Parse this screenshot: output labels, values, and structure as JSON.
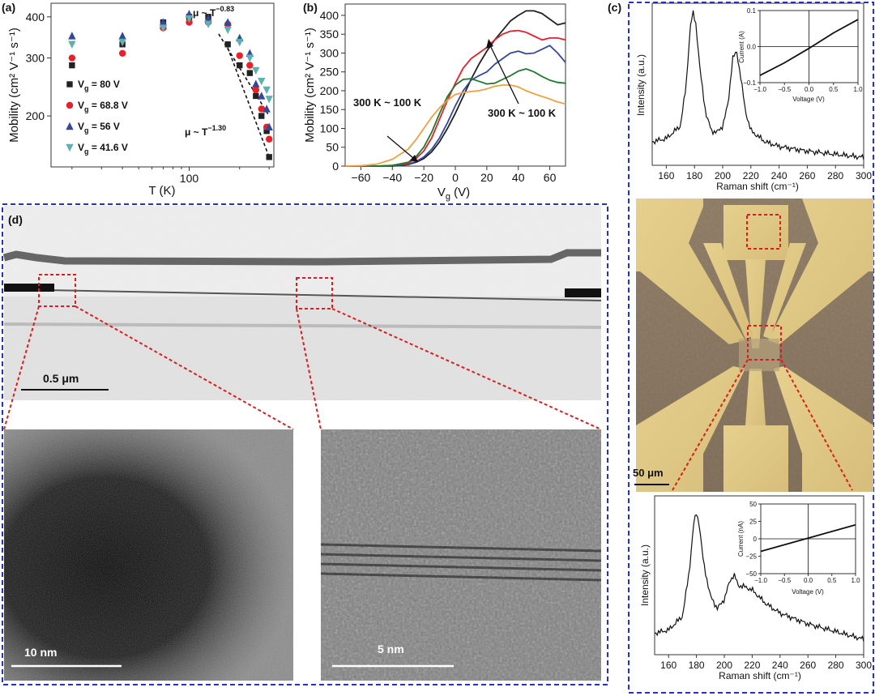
{
  "panel_letters": {
    "a": "(a)",
    "b": "(b)",
    "c": "(c)",
    "d": "(d)"
  },
  "colors": {
    "black": "#222222",
    "red": "#e8202a",
    "blue": "#34489a",
    "teal": "#5fb0b0",
    "green": "#1e7a2e",
    "orange": "#f0a040",
    "frame_blue": "#2233cc",
    "zoom_red": "#d42020"
  },
  "chart_data": [
    {
      "id": "a",
      "type": "scatter",
      "xlabel": "T (K)",
      "ylabel": "Mobility (cm² V⁻¹ s⁻¹)",
      "xscale": "log",
      "yscale": "log",
      "xlim": [
        15,
        320
      ],
      "ylim": [
        140,
        440
      ],
      "xticks": [
        100
      ],
      "yticks": [
        200,
        300,
        400
      ],
      "grid": false,
      "legend_position": "left",
      "annotations": [
        {
          "base": "μ ~ T",
          "exp": "−0.83"
        },
        {
          "base": "μ ~ T",
          "exp": "−1.30"
        }
      ],
      "fit_lines": [
        {
          "x": [
            150,
            300
          ],
          "y": [
            355,
            200
          ]
        },
        {
          "x": [
            165,
            300
          ],
          "y": [
            335,
            150
          ]
        }
      ],
      "x": [
        20,
        40,
        70,
        100,
        130,
        170,
        200,
        230,
        250,
        270,
        290,
        300
      ],
      "series": [
        {
          "name": "V",
          "sub": "g",
          "value": " = 80 V",
          "marker": "square",
          "color": "#222222",
          "values": [
            285,
            330,
            385,
            400,
            400,
            330,
            285,
            270,
            230,
            200,
            180,
            150
          ]
        },
        {
          "name": "V",
          "sub": "g",
          "value": " = 68.8 V",
          "marker": "circle",
          "color": "#e8202a",
          "values": [
            300,
            310,
            370,
            385,
            385,
            380,
            305,
            285,
            240,
            210,
            185,
            170
          ]
        },
        {
          "name": "V",
          "sub": "g",
          "value": " = 56 V",
          "marker": "triangle-up",
          "color": "#34489a",
          "values": [
            350,
            350,
            385,
            408,
            395,
            385,
            345,
            310,
            250,
            230,
            210,
            185
          ]
        },
        {
          "name": "V",
          "sub": "g",
          "value": " = 41.6 V",
          "marker": "triangle-down",
          "color": "#5fb0b0",
          "values": [
            330,
            335,
            370,
            395,
            380,
            365,
            335,
            300,
            275,
            255,
            240,
            225
          ]
        }
      ]
    },
    {
      "id": "b",
      "type": "line",
      "xlabel": "V",
      "xlabel_sub": "g",
      "xlabel_suffix": " (V)",
      "ylabel": "Mobility (cm² V⁻¹ s⁻¹)",
      "xlim": [
        -70,
        70
      ],
      "ylim": [
        0,
        430
      ],
      "xticks": [
        -60,
        -40,
        -20,
        0,
        20,
        40,
        60
      ],
      "yticks": [
        0,
        50,
        100,
        150,
        200,
        250,
        300,
        350,
        400
      ],
      "grid": false,
      "annotations": [
        "300 K ~ 100 K",
        "300 K ~ 100 K"
      ],
      "x": [
        -70,
        -60,
        -50,
        -40,
        -30,
        -25,
        -20,
        -15,
        -10,
        -5,
        0,
        5,
        10,
        15,
        20,
        25,
        30,
        35,
        40,
        45,
        50,
        55,
        60,
        65,
        70
      ],
      "series": [
        {
          "color": "#222222",
          "values": [
            0,
            0,
            0,
            0,
            4,
            10,
            20,
            38,
            65,
            100,
            140,
            185,
            230,
            270,
            305,
            335,
            360,
            385,
            400,
            412,
            412,
            405,
            390,
            375,
            380
          ]
        },
        {
          "color": "#34489a",
          "values": [
            0,
            0,
            0,
            1,
            5,
            12,
            24,
            45,
            75,
            115,
            160,
            200,
            228,
            240,
            250,
            270,
            285,
            300,
            305,
            298,
            300,
            310,
            320,
            300,
            275
          ]
        },
        {
          "color": "#e8202a",
          "values": [
            0,
            0,
            0,
            2,
            8,
            20,
            40,
            75,
            125,
            175,
            220,
            260,
            285,
            300,
            315,
            335,
            350,
            358,
            360,
            355,
            345,
            335,
            340,
            340,
            335
          ]
        },
        {
          "color": "#1e7a2e",
          "values": [
            0,
            0,
            0,
            2,
            10,
            25,
            50,
            90,
            140,
            185,
            215,
            230,
            232,
            225,
            218,
            220,
            230,
            240,
            252,
            258,
            250,
            238,
            228,
            222,
            220
          ]
        },
        {
          "color": "#f0a040",
          "values": [
            0,
            1,
            5,
            18,
            45,
            70,
            100,
            130,
            155,
            175,
            190,
            195,
            198,
            200,
            205,
            212,
            215,
            215,
            210,
            200,
            192,
            185,
            178,
            170,
            165
          ]
        }
      ]
    },
    {
      "id": "c-top",
      "type": "line",
      "xlabel": "Raman shift (cm⁻¹)",
      "ylabel": "Intensity (a.u.)",
      "xlim": [
        150,
        300
      ],
      "xticks": [
        160,
        180,
        200,
        220,
        240,
        260,
        280,
        300
      ],
      "grid": false,
      "x": [
        150,
        160,
        170,
        174,
        177,
        179,
        181,
        184,
        188,
        192,
        196,
        200,
        204,
        207,
        210,
        213,
        216,
        220,
        230,
        240,
        260,
        280,
        300
      ],
      "values": [
        0.15,
        0.17,
        0.25,
        0.5,
        0.88,
        0.97,
        0.9,
        0.6,
        0.33,
        0.22,
        0.21,
        0.25,
        0.4,
        0.68,
        0.72,
        0.55,
        0.35,
        0.22,
        0.15,
        0.12,
        0.09,
        0.07,
        0.05
      ],
      "inset": {
        "xlabel": "Voltage (V)",
        "ylabel": "Current (A)",
        "xlim": [
          -1.0,
          1.0
        ],
        "ylim": [
          -0.1,
          0.1
        ],
        "xticks": [
          -1.0,
          -0.5,
          0.0,
          0.5,
          1.0
        ],
        "yticks": [
          -0.1,
          0.0,
          0.1
        ],
        "x": [
          -1.0,
          -0.5,
          0.0,
          0.5,
          1.0
        ],
        "y": [
          -0.08,
          -0.045,
          -0.005,
          0.038,
          0.075
        ]
      }
    },
    {
      "id": "c-bottom",
      "type": "line",
      "xlabel": "Raman shift (cm⁻¹)",
      "ylabel": "Intensity (a.u.)",
      "xlim": [
        150,
        300
      ],
      "xticks": [
        160,
        180,
        200,
        220,
        240,
        260,
        280,
        300
      ],
      "grid": false,
      "x": [
        150,
        160,
        170,
        175,
        178,
        180,
        182,
        185,
        190,
        195,
        200,
        204,
        207,
        210,
        215,
        220,
        230,
        240,
        260,
        280,
        300
      ],
      "values": [
        0.14,
        0.16,
        0.25,
        0.55,
        0.85,
        0.92,
        0.85,
        0.6,
        0.38,
        0.3,
        0.36,
        0.48,
        0.52,
        0.45,
        0.44,
        0.42,
        0.33,
        0.27,
        0.2,
        0.15,
        0.1
      ],
      "inset": {
        "xlabel": "Voltage (V)",
        "ylabel": "Current (nA)",
        "xlim": [
          -1.0,
          1.0
        ],
        "ylim": [
          -50,
          50
        ],
        "xticks": [
          -1.0,
          -0.5,
          0.0,
          0.5,
          1.0
        ],
        "yticks": [
          -50,
          -25,
          0,
          25,
          50
        ],
        "x": [
          -1.0,
          0.0,
          1.0
        ],
        "y": [
          -18,
          1,
          20
        ]
      }
    }
  ],
  "panel_c_image": {
    "scale_bar": "50 μm"
  },
  "panel_d": {
    "overview_scale": "0.5 μm",
    "left_zoom_scale": "10 nm",
    "right_zoom_scale": "5 nm"
  }
}
